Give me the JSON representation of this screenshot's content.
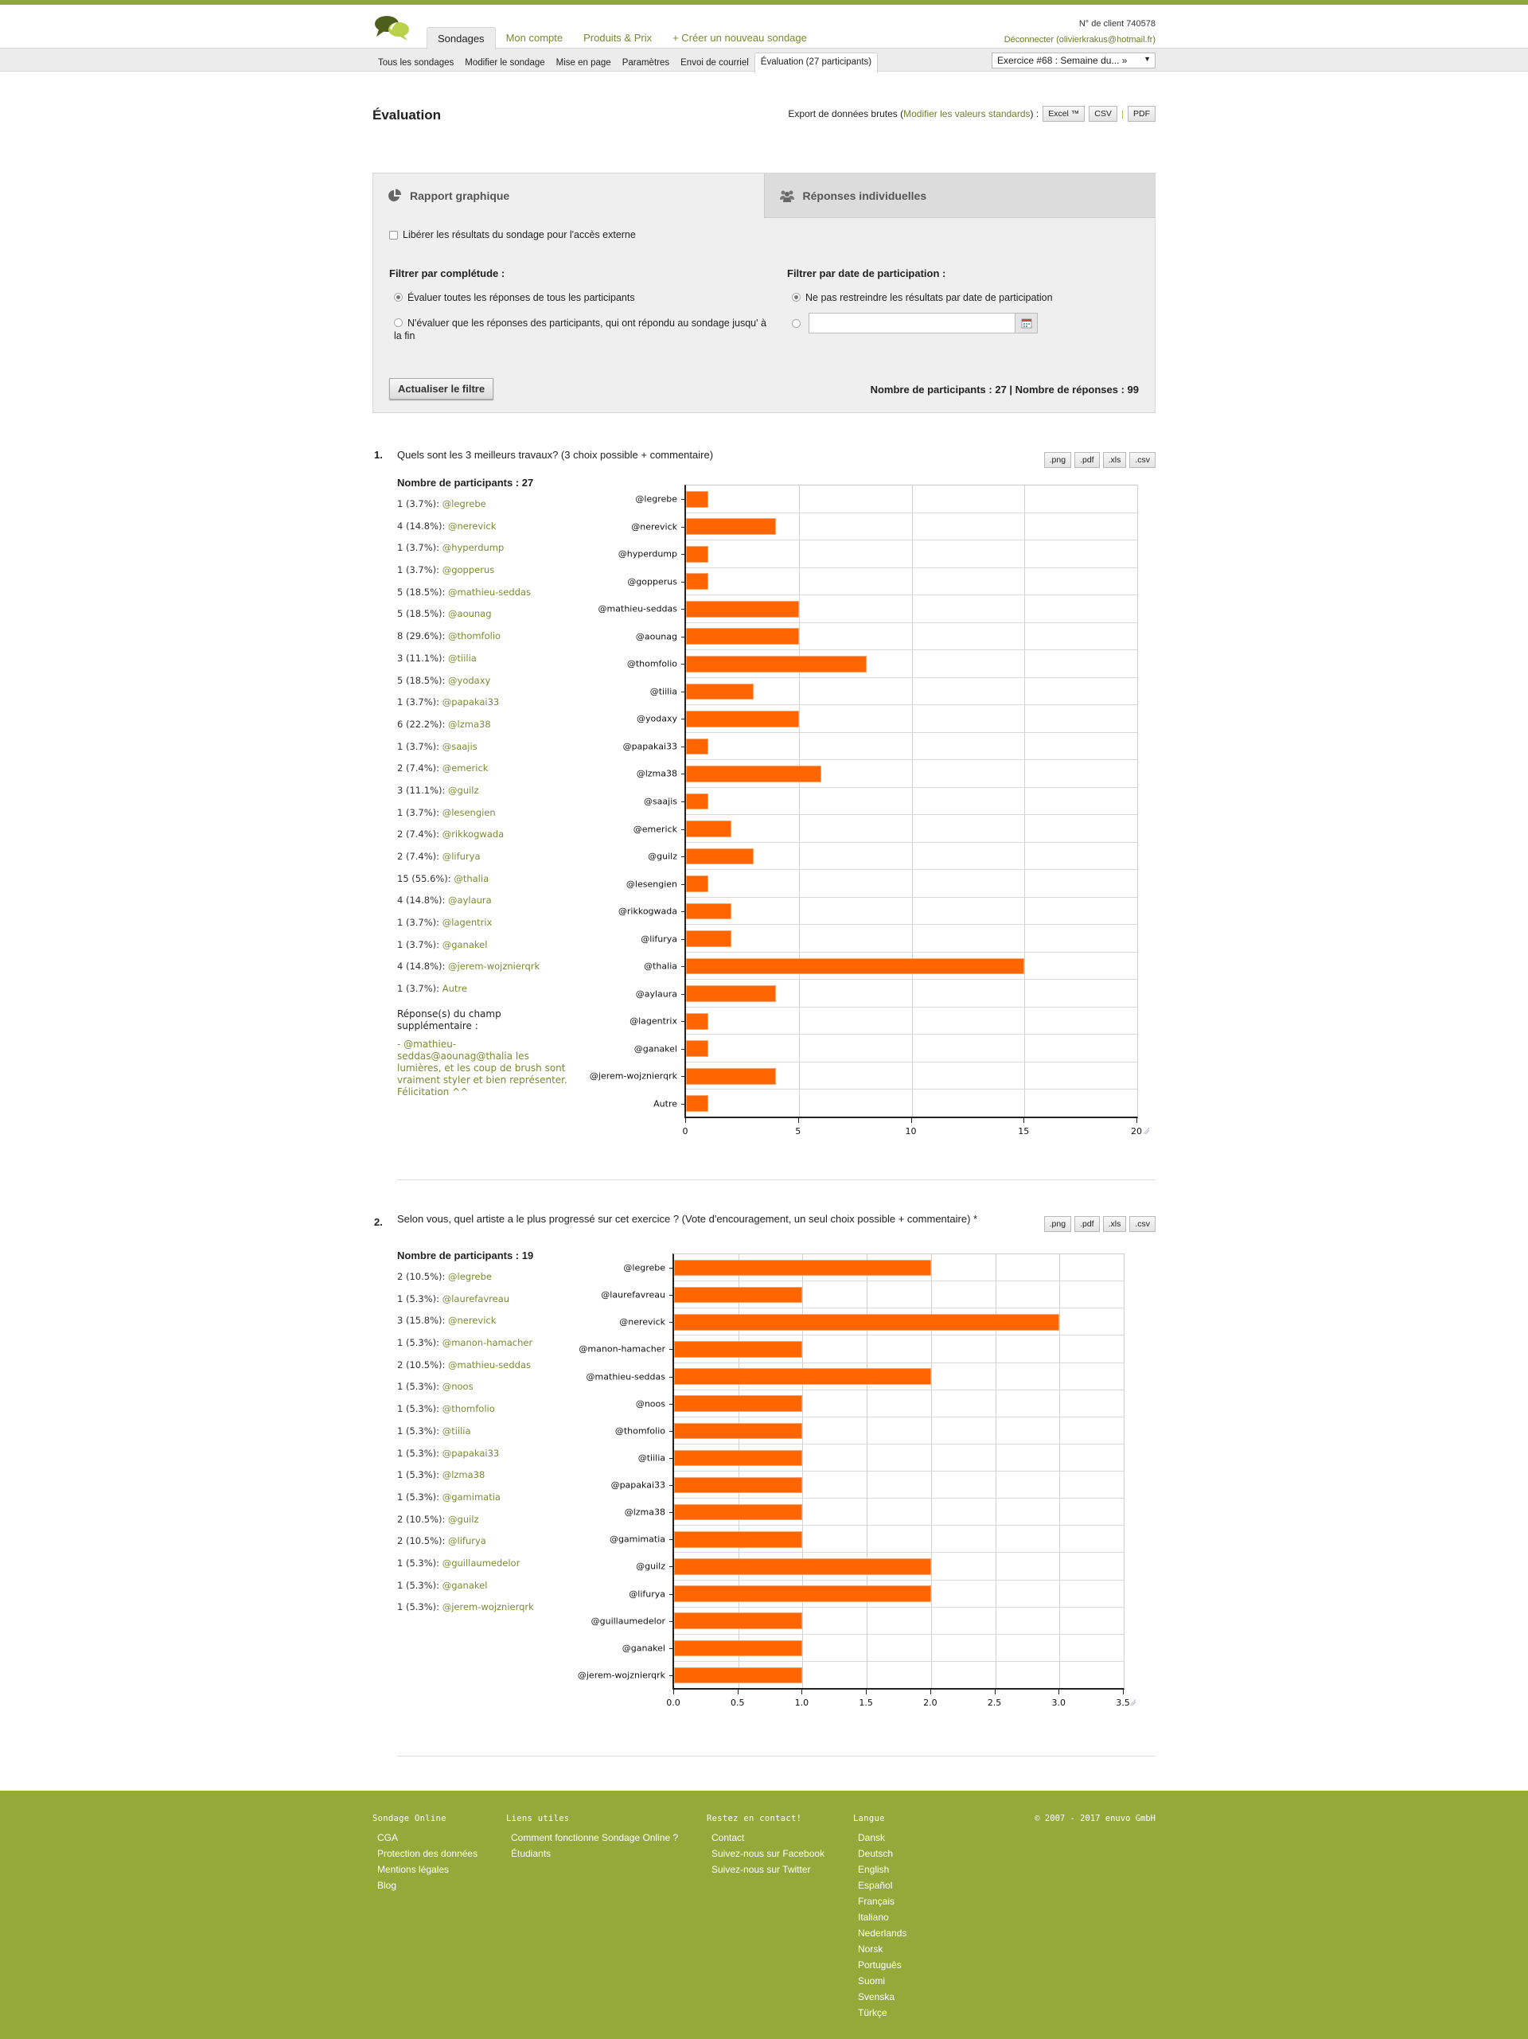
{
  "header": {
    "main_tabs": [
      {
        "label": "Sondages",
        "active": true
      },
      {
        "label": "Mon compte",
        "active": false
      },
      {
        "label": "Produits & Prix",
        "active": false
      },
      {
        "label": "+ Créer un nouveau sondage",
        "active": false
      }
    ],
    "client_number": "N° de client 740578",
    "logout": "Déconnecter (olivierkrakus@hotmail.fr)"
  },
  "subnav": {
    "items": [
      {
        "label": "Tous les sondages"
      },
      {
        "label": "Modifier le sondage"
      },
      {
        "label": "Mise en page"
      },
      {
        "label": "Paramètres"
      },
      {
        "label": "Envoi de courriel"
      },
      {
        "label": "Évaluation (27 participants)",
        "active": true
      }
    ],
    "survey_select": "Exercice #68 : Semaine du... »"
  },
  "page": {
    "title": "Évaluation",
    "export_label": "Export de données brutes (",
    "export_link": "Modifier les valeurs standards",
    "export_suffix": ") :",
    "export_buttons": [
      "Excel ™",
      "CSV",
      "PDF"
    ]
  },
  "panel": {
    "tabs": [
      {
        "label": "Rapport graphique",
        "icon": "pie-chart-icon",
        "active": true
      },
      {
        "label": "Réponses individuelles",
        "icon": "users-icon",
        "active": false
      }
    ],
    "release_checkbox": "Libérer les résultats du sondage pour l'accès externe",
    "filter_completeness": {
      "label": "Filtrer par complétude :",
      "options": [
        {
          "label": "Évaluer toutes les réponses de tous les participants",
          "selected": true
        },
        {
          "label": "N'évaluer que les réponses des participants, qui ont répondu au sondage jusqu' à la fin",
          "selected": false
        }
      ]
    },
    "filter_date": {
      "label": "Filtrer par date de participation :",
      "options": [
        {
          "label": "Ne pas restreindre les résultats par date de participation",
          "selected": true
        },
        {
          "label": "",
          "selected": false
        }
      ],
      "date_value": ""
    },
    "update_button": "Actualiser le filtre",
    "counts": "Nombre de participants : 27 | Nombre de réponses : 99"
  },
  "questions": [
    {
      "number": "1.",
      "text": "Quels sont les 3 meilleurs travaux? (3 choix possible + commentaire)",
      "export_buttons": [
        ".png",
        ".pdf",
        ".xls",
        ".csv"
      ],
      "participants": "Nombre de participants : 27",
      "answers": [
        {
          "count": "1 (3.7%):",
          "name": "@legrebe"
        },
        {
          "count": "4 (14.8%):",
          "name": "@nerevick"
        },
        {
          "count": "1 (3.7%):",
          "name": "@hyperdump"
        },
        {
          "count": "1 (3.7%):",
          "name": "@gopperus"
        },
        {
          "count": "5 (18.5%):",
          "name": "@mathieu-seddas"
        },
        {
          "count": "5 (18.5%):",
          "name": "@aounag"
        },
        {
          "count": "8 (29.6%):",
          "name": "@thomfolio"
        },
        {
          "count": "3 (11.1%):",
          "name": "@tiilia"
        },
        {
          "count": "5 (18.5%):",
          "name": "@yodaxy"
        },
        {
          "count": "1 (3.7%):",
          "name": "@papakai33"
        },
        {
          "count": "6 (22.2%):",
          "name": "@lzma38"
        },
        {
          "count": "1 (3.7%):",
          "name": "@saajis"
        },
        {
          "count": "2 (7.4%):",
          "name": "@emerick"
        },
        {
          "count": "3 (11.1%):",
          "name": "@guilz"
        },
        {
          "count": "1 (3.7%):",
          "name": "@lesengien"
        },
        {
          "count": "2 (7.4%):",
          "name": "@rikkogwada"
        },
        {
          "count": "2 (7.4%):",
          "name": "@lifurya"
        },
        {
          "count": "15 (55.6%):",
          "name": "@thalia"
        },
        {
          "count": "4 (14.8%):",
          "name": "@aylaura"
        },
        {
          "count": "1 (3.7%):",
          "name": "@lagentrix"
        },
        {
          "count": "1 (3.7%):",
          "name": "@ganakel"
        },
        {
          "count": "4 (14.8%):",
          "name": "@jerem-wojznierqrk"
        },
        {
          "count": "1 (3.7%):",
          "name": "Autre"
        }
      ],
      "extra_title": "Réponse(s) du champ supplémentaire :",
      "extra_text": "- @mathieu-seddas@aounag@thalia les lumières, et les coup de brush sont vraiment styler et bien représenter. Félicitation ^^"
    },
    {
      "number": "2.",
      "text": "Selon vous, quel artiste a le plus progressé sur cet exercice ? (Vote d'encouragement, un seul choix possible + commentaire) *",
      "export_buttons": [
        ".png",
        ".pdf",
        ".xls",
        ".csv"
      ],
      "participants": "Nombre de participants : 19",
      "answers": [
        {
          "count": "2 (10.5%):",
          "name": "@legrebe"
        },
        {
          "count": "1 (5.3%):",
          "name": "@laurefavreau"
        },
        {
          "count": "3 (15.8%):",
          "name": "@nerevick"
        },
        {
          "count": "1 (5.3%):",
          "name": "@manon-hamacher"
        },
        {
          "count": "2 (10.5%):",
          "name": "@mathieu-seddas"
        },
        {
          "count": "1 (5.3%):",
          "name": "@noos"
        },
        {
          "count": "1 (5.3%):",
          "name": "@thomfolio"
        },
        {
          "count": "1 (5.3%):",
          "name": "@tiilia"
        },
        {
          "count": "1 (5.3%):",
          "name": "@papakai33"
        },
        {
          "count": "1 (5.3%):",
          "name": "@lzma38"
        },
        {
          "count": "1 (5.3%):",
          "name": "@gamimatia"
        },
        {
          "count": "2 (10.5%):",
          "name": "@guilz"
        },
        {
          "count": "2 (10.5%):",
          "name": "@lifurya"
        },
        {
          "count": "1 (5.3%):",
          "name": "@guillaumedelor"
        },
        {
          "count": "1 (5.3%):",
          "name": "@ganakel"
        },
        {
          "count": "1 (5.3%):",
          "name": "@jerem-wojznierqrk"
        }
      ]
    }
  ],
  "chart_data": [
    {
      "type": "bar",
      "orientation": "horizontal",
      "title": "Quels sont les 3 meilleurs travaux? (3 choix possible + commentaire)",
      "categories": [
        "@legrebe",
        "@nerevick",
        "@hyperdump",
        "@gopperus",
        "@mathieu-seddas",
        "@aounag",
        "@thomfolio",
        "@tiilia",
        "@yodaxy",
        "@papakai33",
        "@lzma38",
        "@saajis",
        "@emerick",
        "@guilz",
        "@lesengien",
        "@rikkogwada",
        "@lifurya",
        "@thalia",
        "@aylaura",
        "@lagentrix",
        "@ganakel",
        "@jerem-wojznierqrk",
        "Autre"
      ],
      "values": [
        1,
        4,
        1,
        1,
        5,
        5,
        8,
        3,
        5,
        1,
        6,
        1,
        2,
        3,
        1,
        2,
        2,
        15,
        4,
        1,
        1,
        4,
        1
      ],
      "xlabel": "",
      "ylabel": "",
      "xlim": [
        0,
        20
      ],
      "xticks": [
        "0",
        "5",
        "10",
        "15",
        "20"
      ],
      "grid": true,
      "color": "#ff6600"
    },
    {
      "type": "bar",
      "orientation": "horizontal",
      "title": "Selon vous, quel artiste a le plus progressé sur cet exercice ? (Vote d'encouragement, un seul choix possible + commentaire)",
      "categories": [
        "@legrebe",
        "@laurefavreau",
        "@nerevick",
        "@manon-hamacher",
        "@mathieu-seddas",
        "@noos",
        "@thomfolio",
        "@tiilia",
        "@papakai33",
        "@lzma38",
        "@gamimatia",
        "@guilz",
        "@lifurya",
        "@guillaumedelor",
        "@ganakel",
        "@jerem-wojznierqrk"
      ],
      "values": [
        2,
        1,
        3,
        1,
        2,
        1,
        1,
        1,
        1,
        1,
        1,
        2,
        2,
        1,
        1,
        1
      ],
      "xlabel": "",
      "ylabel": "",
      "xlim": [
        0,
        3.5
      ],
      "xticks": [
        "0.0",
        "0.5",
        "1.0",
        "1.5",
        "2.0",
        "2.5",
        "3.0",
        "3.5"
      ],
      "grid": true,
      "color": "#ff6600"
    }
  ],
  "footer": {
    "columns": [
      {
        "title": "Sondage Online",
        "links": [
          "CGA",
          "Protection des données",
          "Mentions légales",
          "Blog"
        ]
      },
      {
        "title": "Liens utiles",
        "links": [
          "Comment fonctionne Sondage Online ?",
          "Étudiants"
        ]
      },
      {
        "title": "Restez en contact!",
        "links": [
          "Contact",
          "Suivez-nous sur Facebook",
          "Suivez-nous sur Twitter"
        ]
      },
      {
        "title": "Langue",
        "links": [
          "Dansk",
          "Deutsch",
          "English",
          "Español",
          "Français",
          "Italiano",
          "Nederlands",
          "Norsk",
          "Português",
          "Suomi",
          "Svenska",
          "Türkçe"
        ]
      }
    ],
    "copyright": "© 2007 - 2017 enuvo GmbH"
  },
  "colors": {
    "brand_green": "#93a83a",
    "footer_green": "#95a93b",
    "link_green": "#7b8a33",
    "bar_orange": "#ff6600"
  }
}
